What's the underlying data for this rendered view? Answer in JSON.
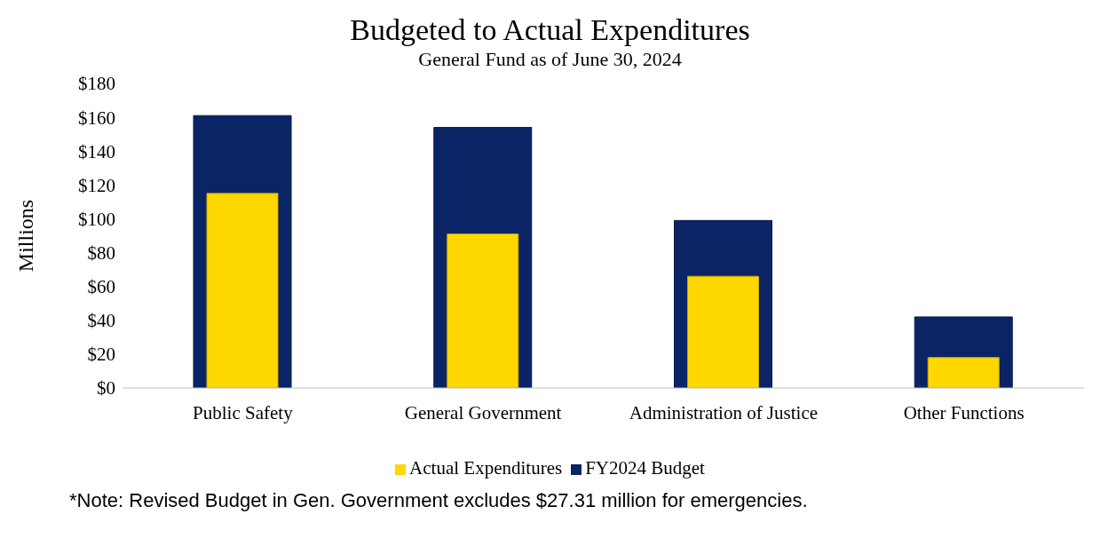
{
  "chart_data": {
    "type": "bar",
    "title": "Budgeted to Actual Expenditures",
    "subtitle": "General Fund as of June 30, 2024",
    "ylabel": "Millions",
    "categories": [
      "Public Safety",
      "General Government",
      "Administration of Justice",
      "Other Functions"
    ],
    "series": [
      {
        "name": "FY2024 Budget",
        "color": "#0a2466",
        "values": [
          161,
          154,
          99,
          42
        ]
      },
      {
        "name": "Actual Expenditures",
        "color": "#ffd700",
        "values": [
          115,
          91,
          66,
          18
        ]
      }
    ],
    "ylim": [
      0,
      180
    ],
    "yticks": [
      {
        "value": 0,
        "label": "$0"
      },
      {
        "value": 20,
        "label": "$20"
      },
      {
        "value": 40,
        "label": "$40"
      },
      {
        "value": 60,
        "label": "$60"
      },
      {
        "value": 80,
        "label": "$80"
      },
      {
        "value": 100,
        "label": "$100"
      },
      {
        "value": 120,
        "label": "$120"
      },
      {
        "value": 140,
        "label": "$140"
      },
      {
        "value": 160,
        "label": "$160"
      },
      {
        "value": 180,
        "label": "$180"
      }
    ],
    "legend": "bottom",
    "grid": false,
    "annotations": [
      "*Note: Revised Budget in Gen. Government excludes $27.31 million for emergencies."
    ]
  }
}
